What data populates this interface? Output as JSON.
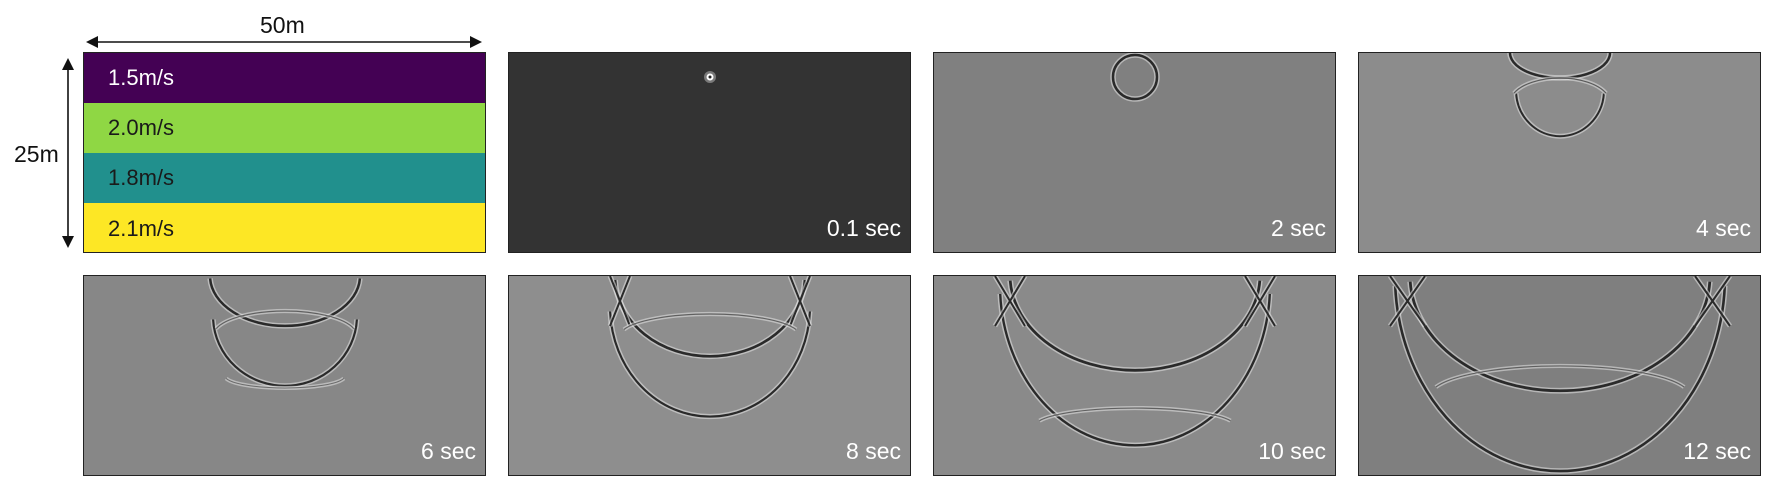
{
  "model": {
    "width_label": "50m",
    "depth_label": "25m",
    "layers": [
      {
        "label": "1.5m/s",
        "color": "#440154"
      },
      {
        "label": "2.0m/s",
        "color": "#8fd744"
      },
      {
        "label": "1.8m/s",
        "color": "#21908d"
      },
      {
        "label": "2.1m/s",
        "color": "#fde725"
      }
    ]
  },
  "snapshots": [
    {
      "label": "0.1 sec",
      "background": "#333333"
    },
    {
      "label": "2 sec",
      "background": "#808080"
    },
    {
      "label": "4 sec",
      "background": "#8c8c8c"
    },
    {
      "label": "6 sec",
      "background": "#878787"
    },
    {
      "label": "8 sec",
      "background": "#8e8e8e"
    },
    {
      "label": "10 sec",
      "background": "#8a8a8a"
    },
    {
      "label": "12 sec",
      "background": "#7f7f7f"
    }
  ]
}
